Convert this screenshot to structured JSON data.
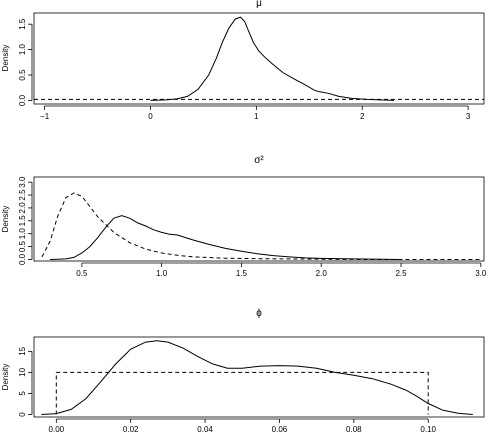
{
  "chart_data": [
    {
      "type": "line",
      "title": "μ",
      "ylabel": "Density",
      "xlim": [
        -1.1,
        3.15
      ],
      "ylim": [
        -0.07,
        1.72
      ],
      "xticks": [
        -1,
        0,
        1,
        2,
        3
      ],
      "xtick_labels": [
        "−1",
        "0",
        "1",
        "2",
        "3"
      ],
      "yticks": [
        0.0,
        0.5,
        1.0,
        1.5
      ],
      "ytick_labels": [
        "0.0",
        "0.5",
        "1.0",
        "1.5"
      ],
      "series": [
        {
          "style": "solid",
          "x": [
            0.0,
            0.15,
            0.25,
            0.35,
            0.45,
            0.55,
            0.62,
            0.68,
            0.74,
            0.8,
            0.85,
            0.89,
            0.93,
            0.97,
            1.02,
            1.08,
            1.15,
            1.25,
            1.35,
            1.45,
            1.55,
            1.6,
            1.68,
            1.78,
            1.9,
            2.05,
            2.3
          ],
          "y": [
            0.0,
            0.01,
            0.03,
            0.08,
            0.22,
            0.5,
            0.82,
            1.15,
            1.42,
            1.6,
            1.64,
            1.55,
            1.35,
            1.15,
            0.98,
            0.85,
            0.72,
            0.55,
            0.43,
            0.32,
            0.2,
            0.17,
            0.14,
            0.08,
            0.04,
            0.02,
            0.0
          ]
        },
        {
          "style": "dashed",
          "x": [
            -1.1,
            3.15
          ],
          "y": [
            0.02,
            0.02
          ]
        }
      ]
    },
    {
      "type": "line",
      "title": "σ²",
      "ylabel": "Density",
      "xlim": [
        0.2,
        3.02
      ],
      "ylim": [
        -0.06,
        3.2
      ],
      "xticks": [
        0.5,
        1.0,
        1.5,
        2.0,
        2.5,
        3.0
      ],
      "xtick_labels": [
        "0.5",
        "1.0",
        "1.5",
        "2.0",
        "2.5",
        "3.0"
      ],
      "yticks": [
        0.0,
        0.5,
        1.0,
        1.5,
        2.0,
        2.5,
        3.0
      ],
      "ytick_labels": [
        "0.0",
        "0.5",
        "1.0",
        "1.5",
        "2.0",
        "2.5",
        "3.0"
      ],
      "series": [
        {
          "style": "solid",
          "x": [
            0.3,
            0.4,
            0.45,
            0.5,
            0.55,
            0.6,
            0.65,
            0.7,
            0.75,
            0.8,
            0.85,
            0.9,
            0.95,
            1.0,
            1.05,
            1.1,
            1.15,
            1.2,
            1.3,
            1.4,
            1.5,
            1.6,
            1.7,
            1.8,
            1.9,
            2.0,
            2.2,
            2.5
          ],
          "y": [
            0.0,
            0.02,
            0.08,
            0.25,
            0.5,
            0.85,
            1.25,
            1.6,
            1.7,
            1.6,
            1.42,
            1.3,
            1.15,
            1.05,
            0.98,
            0.95,
            0.85,
            0.75,
            0.58,
            0.43,
            0.32,
            0.22,
            0.15,
            0.1,
            0.06,
            0.04,
            0.02,
            0.0
          ]
        },
        {
          "style": "dashed",
          "x": [
            0.25,
            0.3,
            0.35,
            0.4,
            0.45,
            0.5,
            0.55,
            0.6,
            0.7,
            0.8,
            0.9,
            1.0,
            1.1,
            1.2,
            1.4,
            1.6,
            1.8,
            2.0,
            2.3,
            2.6,
            3.0
          ],
          "y": [
            0.1,
            0.7,
            1.7,
            2.4,
            2.58,
            2.45,
            2.05,
            1.65,
            1.05,
            0.65,
            0.4,
            0.25,
            0.16,
            0.1,
            0.05,
            0.03,
            0.02,
            0.01,
            0.0,
            0.0,
            0.0
          ]
        }
      ]
    },
    {
      "type": "line",
      "title": "ϕ",
      "ylabel": "Density",
      "xlim": [
        -0.006,
        0.115
      ],
      "ylim": [
        -0.6,
        18.4
      ],
      "xticks": [
        0.0,
        0.02,
        0.04,
        0.06,
        0.08,
        0.1
      ],
      "xtick_labels": [
        "0.00",
        "0.02",
        "0.04",
        "0.06",
        "0.08",
        "0.10"
      ],
      "yticks": [
        0,
        5,
        10,
        15
      ],
      "ytick_labels": [
        "0",
        "5",
        "10",
        "15"
      ],
      "series": [
        {
          "style": "solid",
          "x": [
            -0.004,
            0.0,
            0.004,
            0.008,
            0.012,
            0.016,
            0.02,
            0.024,
            0.027,
            0.03,
            0.034,
            0.038,
            0.042,
            0.046,
            0.05,
            0.055,
            0.06,
            0.065,
            0.07,
            0.075,
            0.08,
            0.085,
            0.09,
            0.094,
            0.097,
            0.1,
            0.104,
            0.108,
            0.112
          ],
          "y": [
            0.0,
            0.2,
            1.2,
            3.8,
            7.8,
            12.0,
            15.5,
            17.2,
            17.5,
            17.2,
            15.8,
            13.8,
            12.0,
            11.0,
            11.0,
            11.5,
            11.6,
            11.5,
            11.0,
            10.0,
            9.3,
            8.5,
            7.2,
            5.8,
            4.3,
            2.6,
            1.0,
            0.3,
            0.0
          ]
        },
        {
          "style": "dashed",
          "x": [
            0.0,
            0.0,
            0.1,
            0.1
          ],
          "y": [
            0.0,
            10.0,
            10.0,
            0.0
          ]
        }
      ]
    }
  ]
}
